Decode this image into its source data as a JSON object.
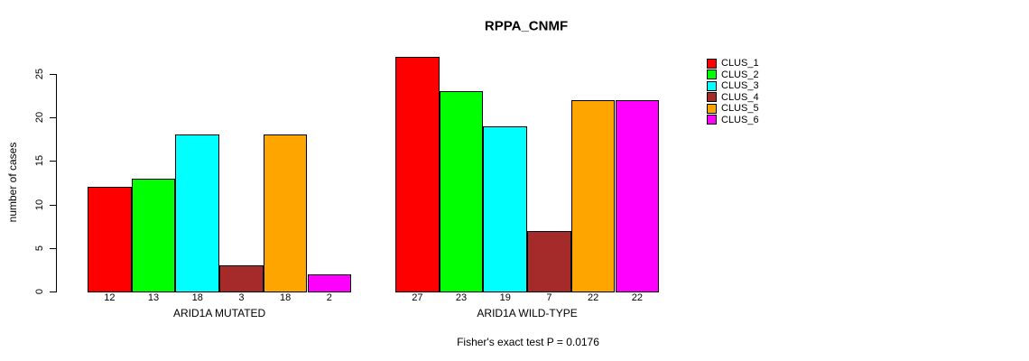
{
  "chart_data": {
    "type": "bar",
    "title": "RPPA_CNMF",
    "xlabel": "",
    "ylabel": "number of cases",
    "ylim": [
      0,
      27
    ],
    "yticks": [
      0,
      5,
      10,
      15,
      20,
      25
    ],
    "grid": false,
    "legend_position": "right",
    "annotation": "Fisher's exact test P = 0.0176",
    "series": [
      {
        "name": "CLUS_1",
        "color": "#FF0000"
      },
      {
        "name": "CLUS_2",
        "color": "#00FF00"
      },
      {
        "name": "CLUS_3",
        "color": "#00FFFF"
      },
      {
        "name": "CLUS_4",
        "color": "#A52A2A"
      },
      {
        "name": "CLUS_5",
        "color": "#FFA500"
      },
      {
        "name": "CLUS_6",
        "color": "#FF00FF"
      }
    ],
    "groups": [
      {
        "label": "ARID1A MUTATED",
        "values": [
          12,
          13,
          18,
          3,
          18,
          2
        ]
      },
      {
        "label": "ARID1A WILD-TYPE",
        "values": [
          27,
          23,
          19,
          7,
          22,
          22
        ]
      }
    ]
  }
}
